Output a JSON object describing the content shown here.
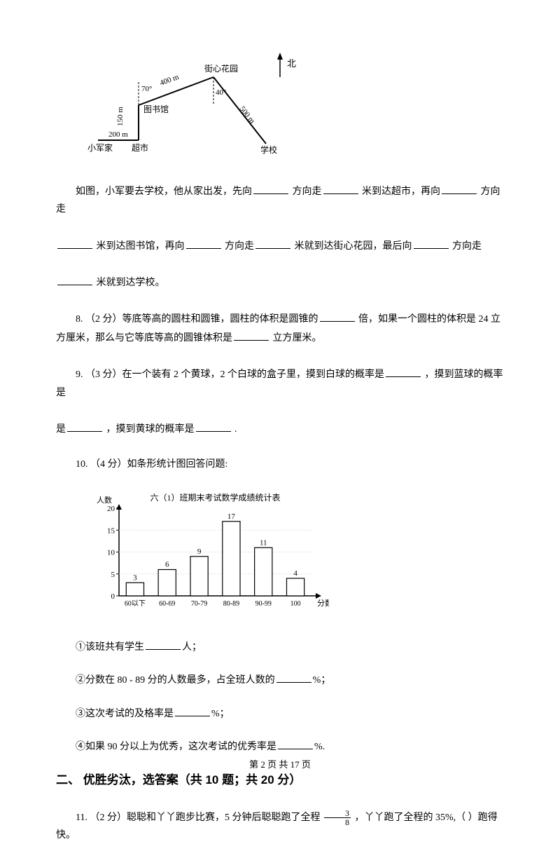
{
  "diagram1": {
    "labels": {
      "garden": "街心花园",
      "north": "北",
      "library": "图书馆",
      "school": "学校",
      "supermarket": "超市",
      "home": "小军家",
      "d200": "200 m",
      "d150": "150 m",
      "d400": "400 m",
      "d500": "500 m",
      "a70": "70°",
      "a40": "40°"
    }
  },
  "q7": {
    "line1_a": "如图，小军要去学校，他从家出发，先向",
    "line1_b": "方向走",
    "line1_c": "米到达超市，再向",
    "line1_d": "方向走",
    "line2_a": "米到达图书馆，再向",
    "line2_b": "方向走",
    "line2_c": "米就到达街心花园，最后向",
    "line2_d": "方向走",
    "line3_a": "米就到达学校。"
  },
  "q8": {
    "prefix": "8.  （2 分）等底等高的圆柱和圆锥，圆柱的体积是圆锥的",
    "mid": "倍，如果一个圆柱的体积是 24 立方厘米，那么与它等底等高的圆锥体积是",
    "suffix": "立方厘米。"
  },
  "q9": {
    "prefix": "9.  （3 分）在一个装有 2 个黄球，2 个白球的盒子里，摸到白球的概率是",
    "mid": "，摸到蓝球的概率是",
    "mid2": "，摸到黄球的概率是",
    "suffix": "."
  },
  "q10": {
    "text": "10.  （4 分）如条形统计图回答问题:"
  },
  "chart": {
    "title": "六（1）班期末考试数学成绩统计表",
    "ylabel": "人数",
    "xlabel": "分数",
    "ylim": [
      0,
      20
    ],
    "yticks": [
      0,
      5,
      10,
      15,
      20
    ],
    "categories": [
      "60以下",
      "60-69",
      "70-79",
      "80-89",
      "90-99",
      "100"
    ],
    "values": [
      3,
      6,
      9,
      17,
      11,
      4
    ],
    "bar_fill": "#ffffff",
    "bar_stroke": "#000000",
    "axis_color": "#000000",
    "grid_color": "#e0e0e0",
    "font_size": 11,
    "title_font_size": 12
  },
  "q10_sub": {
    "s1_a": "①该班共有学生",
    "s1_b": "人；",
    "s2_a": "②分数在 80 - 89 分的人数最多，占全班人数的",
    "s2_b": "%；",
    "s3_a": "③这次考试的及格率是",
    "s3_b": "%；",
    "s4_a": "④如果 90 分以上为优秀，这次考试的优秀率是",
    "s4_b": "%."
  },
  "section2": {
    "heading": "二、 优胜劣汰，选答案（共 10 题；共 20 分）"
  },
  "q11": {
    "prefix": "11.  （2 分）聪聪和丫丫跑步比赛，5 分钟后聪聪跑了全程",
    "frac_num": "3",
    "frac_den": "8",
    "mid": " ，丫丫跑了全程的 35%,（     ）跑得快。"
  },
  "footer": {
    "text": "第 2 页 共 17 页"
  }
}
